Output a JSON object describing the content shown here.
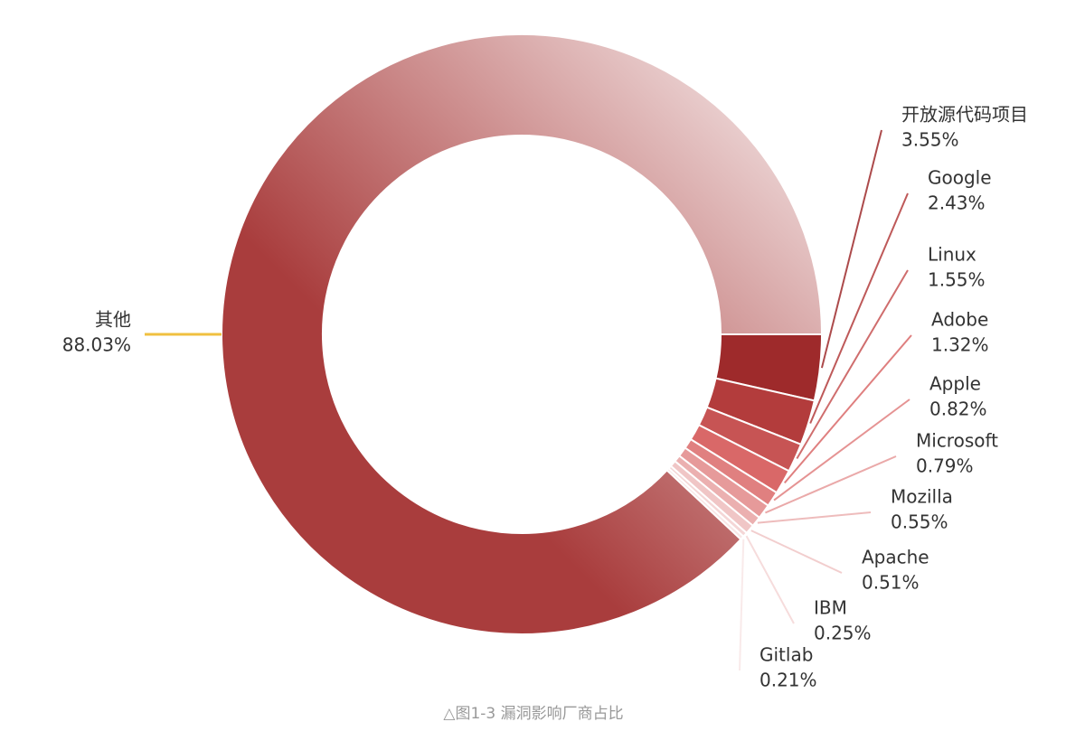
{
  "chart_data": {
    "type": "donut",
    "caption": "△图1-3 漏洞影响厂商占比",
    "categories": [
      "开放源代码项目",
      "Google",
      "Linux",
      "Adobe",
      "Apple",
      "Microsoft",
      "Mozilla",
      "Apache",
      "IBM",
      "Gitlab",
      "其他"
    ],
    "values": [
      3.55,
      2.43,
      1.55,
      1.32,
      0.82,
      0.79,
      0.55,
      0.51,
      0.25,
      0.21,
      88.03
    ],
    "value_labels": [
      "3.55%",
      "2.43%",
      "1.55%",
      "1.32%",
      "0.82%",
      "0.79%",
      "0.55%",
      "0.51%",
      "0.25%",
      "0.21%",
      "88.03%"
    ],
    "colors": [
      "#9e2a2b",
      "#b33c3c",
      "#c75454",
      "#d96868",
      "#e08080",
      "#e69a9a",
      "#ebb0b0",
      "#f0c6c6",
      "#f4d6d6",
      "#f8e6e6",
      "#a93d3d"
    ]
  }
}
